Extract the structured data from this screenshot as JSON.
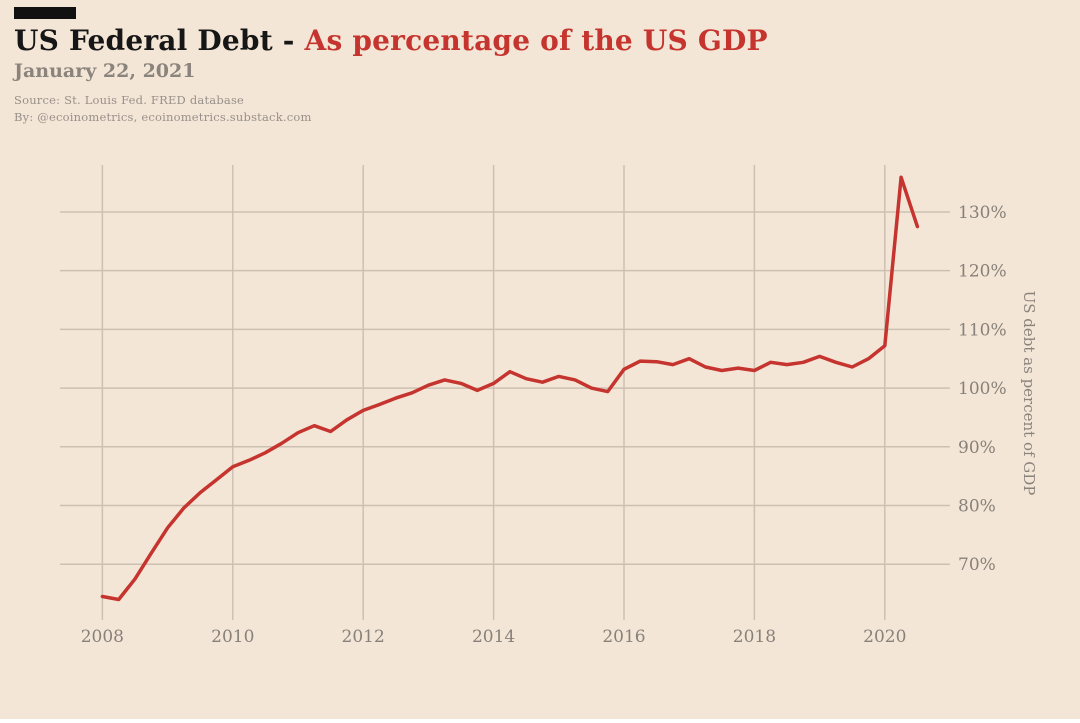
{
  "header": {
    "title_black": "US Federal Debt - ",
    "title_red": "As percentage of the US GDP",
    "date": "January 22, 2021",
    "source": "Source: St. Louis Fed. FRED database",
    "byline": "By: @ecoinometrics, ecoinometrics.substack.com"
  },
  "colors": {
    "background": "#f4e6d6",
    "line": "#c5342e",
    "grid": "#ccc0b2",
    "accent_bar": "#111111",
    "title_red": "#c5342e"
  },
  "chart_data": {
    "type": "line",
    "title": "US Federal Debt - As percentage of the US GDP",
    "xlabel": "",
    "ylabel": "US debt as percent of GDP",
    "grid": true,
    "legend_position": "none",
    "xlim": [
      2007.35,
      2021.0
    ],
    "ylim": [
      60.5,
      138.0
    ],
    "x_ticks": [
      2008,
      2010,
      2012,
      2014,
      2016,
      2018,
      2020
    ],
    "y_ticks": [
      70,
      80,
      90,
      100,
      110,
      120,
      130
    ],
    "y_tick_suffix": "%",
    "line_color": "#c5342e",
    "series": [
      {
        "name": "US federal debt as percent of GDP",
        "x": [
          2008.0,
          2008.25,
          2008.5,
          2008.75,
          2009.0,
          2009.25,
          2009.5,
          2009.75,
          2010.0,
          2010.25,
          2010.5,
          2010.75,
          2011.0,
          2011.25,
          2011.5,
          2011.75,
          2012.0,
          2012.25,
          2012.5,
          2012.75,
          2013.0,
          2013.25,
          2013.5,
          2013.75,
          2014.0,
          2014.25,
          2014.5,
          2014.75,
          2015.0,
          2015.25,
          2015.5,
          2015.75,
          2016.0,
          2016.25,
          2016.5,
          2016.75,
          2017.0,
          2017.25,
          2017.5,
          2017.75,
          2018.0,
          2018.25,
          2018.5,
          2018.75,
          2019.0,
          2019.25,
          2019.5,
          2019.75,
          2020.0,
          2020.25,
          2020.5
        ],
        "y": [
          64.5,
          64.0,
          67.5,
          71.9,
          76.2,
          79.6,
          82.2,
          84.4,
          86.6,
          87.7,
          89.0,
          90.6,
          92.4,
          93.6,
          92.6,
          94.6,
          96.2,
          97.2,
          98.3,
          99.2,
          100.5,
          101.4,
          100.8,
          99.6,
          100.8,
          102.8,
          101.6,
          101.0,
          102.0,
          101.4,
          100.0,
          99.4,
          103.2,
          104.6,
          104.5,
          104.0,
          105.0,
          103.6,
          103.0,
          103.4,
          103.0,
          104.4,
          104.0,
          104.4,
          105.4,
          104.4,
          103.6,
          105.0,
          107.2,
          135.9,
          127.5
        ]
      }
    ]
  }
}
